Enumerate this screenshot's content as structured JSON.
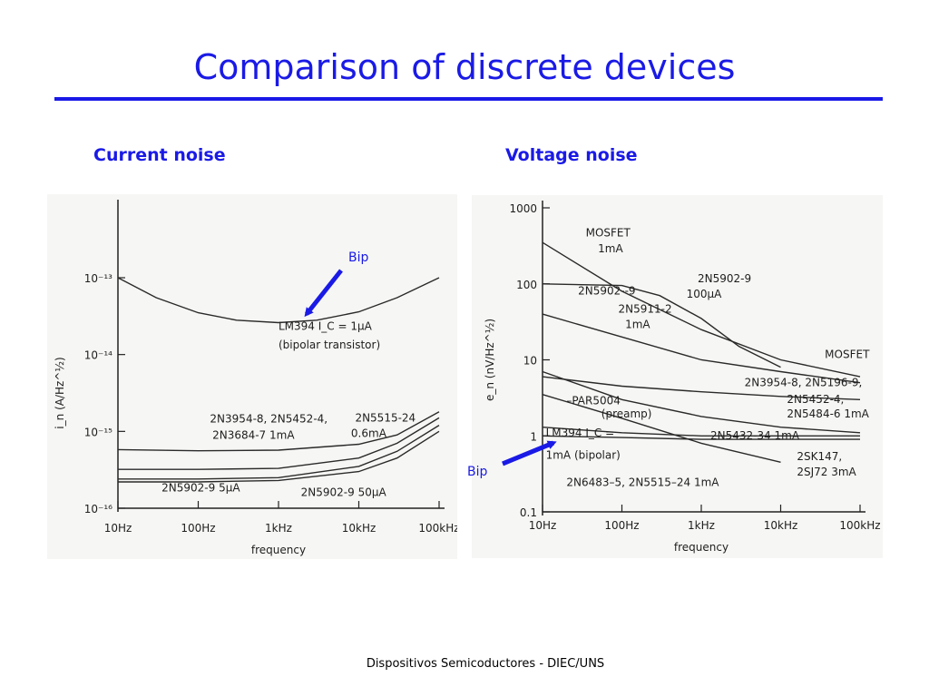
{
  "slide": {
    "title": "Comparison of discrete devices",
    "footer": "Dispositivos Semicoductores - DIEC/UNS",
    "accent_color": "#1a1ae6"
  },
  "chart_data": [
    {
      "type": "line",
      "subtitle": "Current noise",
      "xlabel": "frequency",
      "ylabel": "i_n (A/Hz^½)",
      "xscale": "log",
      "yscale": "log",
      "xlim": [
        10,
        100000
      ],
      "ylim": [
        1e-16,
        1e-13
      ],
      "xticks": [
        {
          "value": 10,
          "label": "10Hz"
        },
        {
          "value": 100,
          "label": "100Hz"
        },
        {
          "value": 1000,
          "label": "1kHz"
        },
        {
          "value": 10000,
          "label": "10kHz"
        },
        {
          "value": 100000,
          "label": "100kHz"
        }
      ],
      "yticks": [
        {
          "value": 1e-13,
          "label": "10⁻¹³"
        },
        {
          "value": 1e-14,
          "label": "10⁻¹⁴"
        },
        {
          "value": 1e-15,
          "label": "10⁻¹⁵"
        },
        {
          "value": 1e-16,
          "label": "10⁻¹⁶"
        }
      ],
      "series": [
        {
          "name": "LM394 I_C = 1μA (bipolar transistor)",
          "x": [
            10,
            30,
            100,
            300,
            1000,
            3000,
            10000,
            30000,
            100000
          ],
          "y": [
            1e-13,
            5.5e-14,
            3.5e-14,
            2.8e-14,
            2.6e-14,
            2.8e-14,
            3.6e-14,
            5.5e-14,
            1e-13
          ]
        },
        {
          "name": "2N5515-24 0.6mA",
          "x": [
            10,
            100,
            1000,
            10000,
            30000,
            100000
          ],
          "y": [
            5.8e-16,
            5.6e-16,
            5.7e-16,
            6.8e-16,
            9e-16,
            1.8e-15
          ]
        },
        {
          "name": "2N3954-8, 2N5452-4, 2N3684-7 1mA",
          "x": [
            10,
            100,
            1000,
            10000,
            30000,
            100000
          ],
          "y": [
            3.2e-16,
            3.2e-16,
            3.3e-16,
            4.5e-16,
            7e-16,
            1.5e-15
          ]
        },
        {
          "name": "2N5902-9 5μA",
          "x": [
            10,
            100,
            1000,
            10000,
            30000,
            100000
          ],
          "y": [
            2.4e-16,
            2.4e-16,
            2.5e-16,
            3.5e-16,
            5.5e-16,
            1.2e-15
          ]
        },
        {
          "name": "2N5902-9 50μA",
          "x": [
            10,
            100,
            1000,
            10000,
            30000,
            100000
          ],
          "y": [
            2.2e-16,
            2.2e-16,
            2.3e-16,
            3e-16,
            4.5e-16,
            1e-15
          ]
        }
      ],
      "annotations": [
        {
          "text": "LM394 I_C = 1μA",
          "x": 1000,
          "y": 2.1e-14
        },
        {
          "text": "(bipolar transistor)",
          "x": 1000,
          "y": 1.2e-14
        },
        {
          "text": "2N3954-8, 2N5452-4,",
          "x": 140,
          "y": 1.3e-15
        },
        {
          "text": "2N3684-7 1mA",
          "x": 150,
          "y": 8e-16
        },
        {
          "text": "2N5515-24",
          "x": 9000,
          "y": 1.35e-15
        },
        {
          "text": "0.6mA",
          "x": 8000,
          "y": 8.5e-16
        },
        {
          "text": "2N5902-9 5μA",
          "x": 35,
          "y": 1.65e-16
        },
        {
          "text": "2N5902-9 50μA",
          "x": 1900,
          "y": 1.45e-16
        }
      ],
      "pointer": {
        "label": "Bip"
      }
    },
    {
      "type": "line",
      "subtitle": "Voltage noise",
      "xlabel": "frequency",
      "ylabel": "e_n (nV/Hz^½)",
      "xscale": "log",
      "yscale": "log",
      "xlim": [
        10,
        100000
      ],
      "ylim": [
        0.1,
        1000
      ],
      "xticks": [
        {
          "value": 10,
          "label": "10Hz"
        },
        {
          "value": 100,
          "label": "100Hz"
        },
        {
          "value": 1000,
          "label": "1kHz"
        },
        {
          "value": 10000,
          "label": "10kHz"
        },
        {
          "value": 100000,
          "label": "100kHz"
        }
      ],
      "yticks": [
        {
          "value": 1000,
          "label": "1000"
        },
        {
          "value": 100,
          "label": "100"
        },
        {
          "value": 10,
          "label": "10"
        },
        {
          "value": 1,
          "label": "1"
        },
        {
          "value": 0.1,
          "label": "0.1"
        }
      ],
      "series": [
        {
          "name": "MOSFET 1mA",
          "x": [
            10,
            100,
            1000,
            10000,
            100000
          ],
          "y": [
            350,
            80,
            25,
            10,
            6
          ]
        },
        {
          "name": "2N5902-9 100μA",
          "x": [
            10,
            100,
            300,
            1000,
            3000,
            10000
          ],
          "y": [
            100,
            95,
            70,
            35,
            15,
            8
          ]
        },
        {
          "name": "2N5911-2 1mA",
          "x": [
            10,
            100,
            1000,
            10000,
            100000
          ],
          "y": [
            40,
            20,
            10,
            7,
            5
          ]
        },
        {
          "name": "2N3954-8, 2N5196-9",
          "x": [
            10,
            100,
            1000,
            10000,
            100000
          ],
          "y": [
            6,
            4.5,
            3.8,
            3.3,
            3
          ]
        },
        {
          "name": "2N5452-4, 2N5484-6 1mA",
          "x": [
            10,
            100,
            1000,
            10000,
            100000
          ],
          "y": [
            7,
            3,
            1.8,
            1.3,
            1.1
          ]
        },
        {
          "name": "PAR5004 (preamp)",
          "x": [
            10,
            100,
            1000,
            10000
          ],
          "y": [
            3.5,
            1.7,
            0.8,
            0.45
          ]
        },
        {
          "name": "2N5432-34 1mA",
          "x": [
            10,
            100,
            1000,
            10000,
            100000
          ],
          "y": [
            1.3,
            1.1,
            1,
            1,
            1
          ]
        },
        {
          "name": "LM394 I_C = 1mA (bipolar)",
          "x": [
            10,
            100,
            1000,
            10000,
            100000
          ],
          "y": [
            1,
            0.95,
            0.9,
            0.9,
            0.9
          ]
        }
      ],
      "annotations": [
        {
          "text": "MOSFET",
          "x": 35,
          "y": 420
        },
        {
          "text": "1mA",
          "x": 50,
          "y": 260
        },
        {
          "text": "2N5902--9",
          "x": 28,
          "y": 72
        },
        {
          "text": "2N5902-9",
          "x": 900,
          "y": 105
        },
        {
          "text": "100μA",
          "x": 650,
          "y": 66
        },
        {
          "text": "2N5911-2",
          "x": 90,
          "y": 42
        },
        {
          "text": "1mA",
          "x": 110,
          "y": 26
        },
        {
          "text": "MOSFET",
          "x": 36000,
          "y": 10.5
        },
        {
          "text": "2N3954-8, 2N5196-9,",
          "x": 3500,
          "y": 4.5
        },
        {
          "text": "2N5452-4,",
          "x": 12000,
          "y": 2.7
        },
        {
          "text": "2N5484-6 1mA",
          "x": 12000,
          "y": 1.75
        },
        {
          "text": "–PAR5004",
          "x": 20,
          "y": 2.6
        },
        {
          "text": "(preamp)",
          "x": 55,
          "y": 1.75
        },
        {
          "text": "LM394 I_C =",
          "x": 11,
          "y": 0.98
        },
        {
          "text": "2N5432-34 1mA",
          "x": 1300,
          "y": 0.9
        },
        {
          "text": "1mA (bipolar)",
          "x": 11,
          "y": 0.5
        },
        {
          "text": "2SK147,",
          "x": 16000,
          "y": 0.48
        },
        {
          "text": "2SJ72 3mA",
          "x": 16000,
          "y": 0.3
        },
        {
          "text": "2N6483–5, 2N5515–24 1mA",
          "x": 20,
          "y": 0.22
        }
      ],
      "pointer": {
        "label": "Bip"
      }
    }
  ]
}
